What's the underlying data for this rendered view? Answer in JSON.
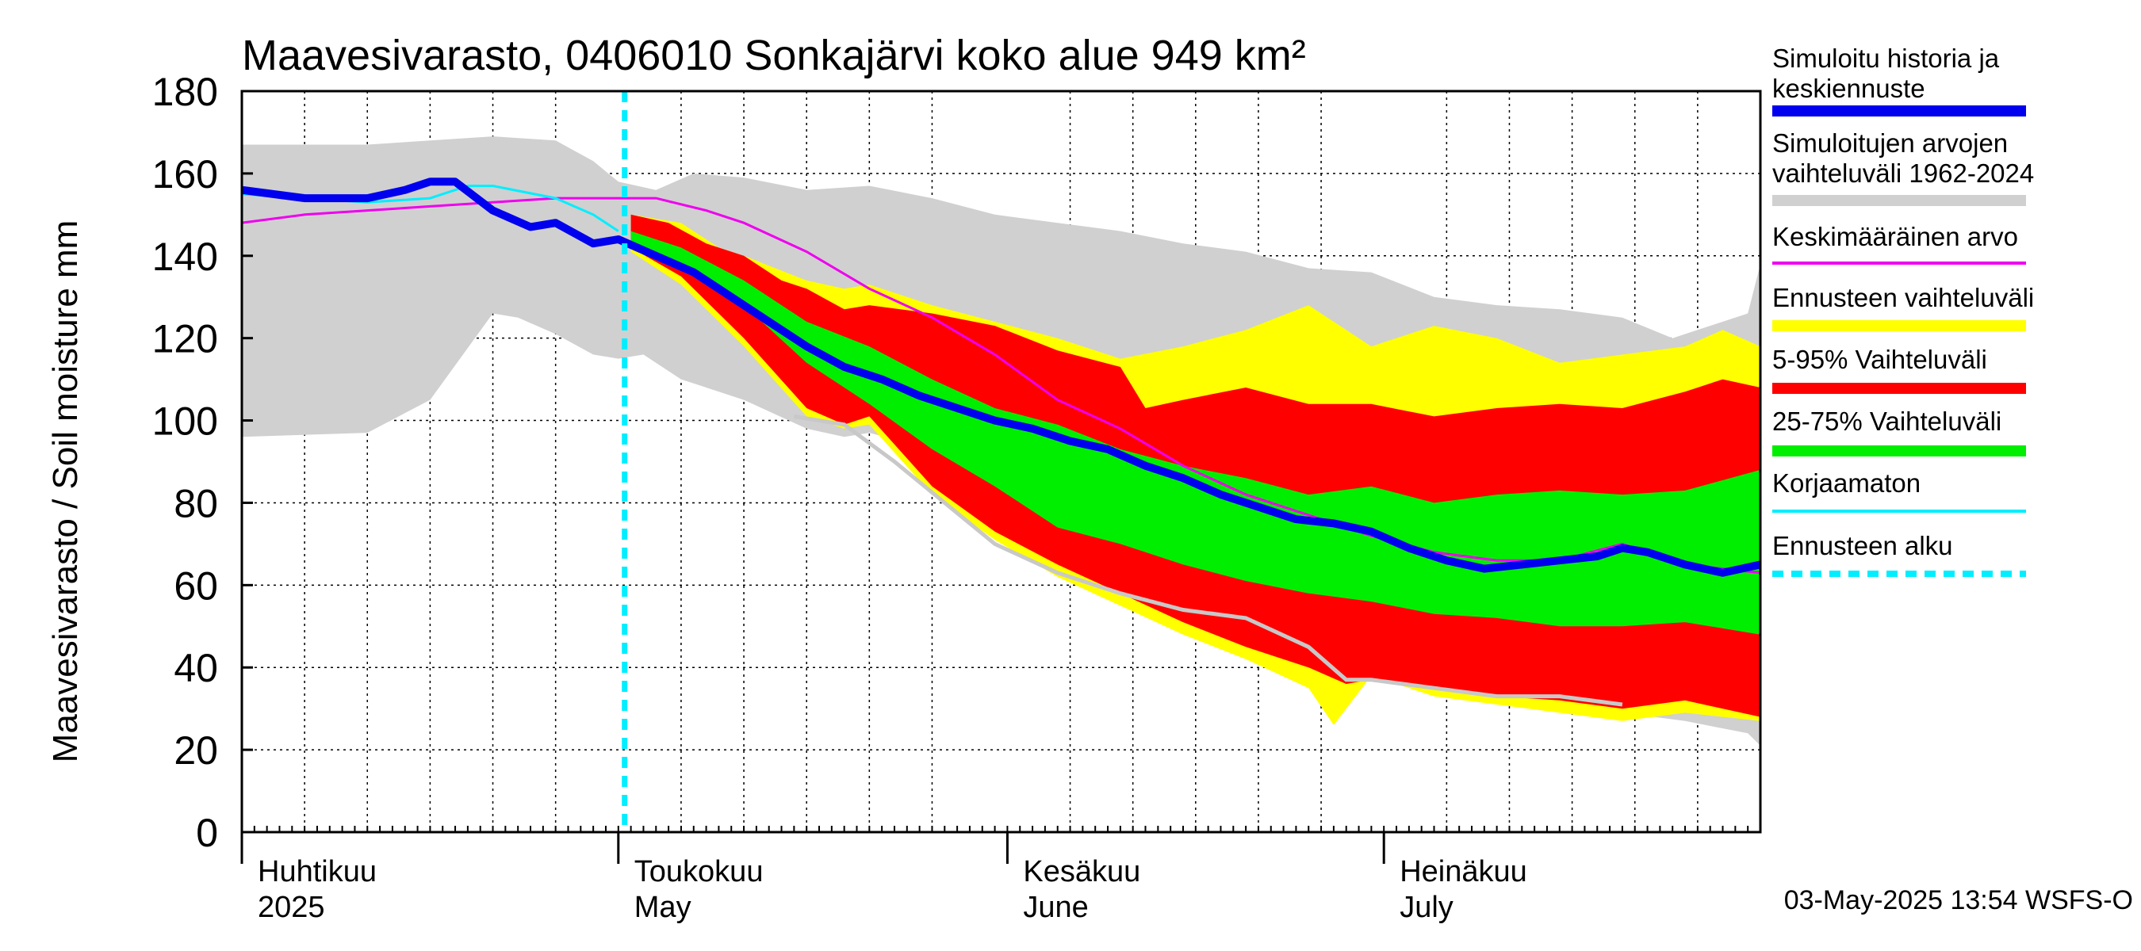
{
  "chart_data": {
    "type": "area",
    "title": "Maavesivarasto, 0406010 Sonkajärvi koko alue 949 km²",
    "ylabel": "Maavesivarasto / Soil moisture   mm",
    "ylim": [
      0,
      180
    ],
    "yticks": [
      "0",
      "20",
      "40",
      "60",
      "80",
      "100",
      "120",
      "140",
      "160",
      "180"
    ],
    "xlim_day": [
      0,
      121
    ],
    "months": [
      {
        "fi": "Huhtikuu",
        "en": "2025",
        "day": 0
      },
      {
        "fi": "Toukokuu",
        "en": "May",
        "day": 30
      },
      {
        "fi": "Kesäkuu",
        "en": "June",
        "day": 61
      },
      {
        "fi": "Heinäkuu",
        "en": "July",
        "day": 91
      }
    ],
    "forecast_start_day": 30.5,
    "footer": "03-May-2025 13:54 WSFS-O",
    "colors": {
      "history": "#0000ee",
      "range": "#d0d0d0",
      "mean": "#ee00ee",
      "ens_range": "#ffff00",
      "p5_95": "#ff0000",
      "p25_75": "#00ee00",
      "uncorrected": "#00eeff",
      "forecast_start": "#00eeff",
      "grid": "#000000"
    },
    "legend": [
      {
        "label": "Simuloitu historia ja keskiennuste",
        "key": "history",
        "style": "thick"
      },
      {
        "label": "Simuloitujen arvojen vaihteluväli 1962-2024",
        "key": "range",
        "style": "thick"
      },
      {
        "label": "Keskimääräinen arvo",
        "key": "mean",
        "style": "thin"
      },
      {
        "label": "Ennusteen vaihteluväli",
        "key": "ens_range",
        "style": "thick"
      },
      {
        "label": "5-95% Vaihteluväli",
        "key": "p5_95",
        "style": "thick"
      },
      {
        "label": "25-75% Vaihteluväli",
        "key": "p25_75",
        "style": "thick"
      },
      {
        "label": "Korjaamaton",
        "key": "uncorrected",
        "style": "thin"
      },
      {
        "label": "Ennusteen alku",
        "key": "forecast_start",
        "style": "dashed"
      }
    ],
    "series": {
      "range_upper": [
        [
          0,
          167
        ],
        [
          10,
          167
        ],
        [
          20,
          169
        ],
        [
          25,
          168
        ],
        [
          28,
          163
        ],
        [
          30,
          158
        ],
        [
          33,
          156
        ],
        [
          36,
          160
        ],
        [
          40,
          159
        ],
        [
          45,
          156
        ],
        [
          50,
          157
        ],
        [
          55,
          154
        ],
        [
          60,
          150
        ],
        [
          65,
          148
        ],
        [
          70,
          146
        ],
        [
          75,
          143
        ],
        [
          80,
          141
        ],
        [
          85,
          137
        ],
        [
          90,
          136
        ],
        [
          95,
          130
        ],
        [
          100,
          128
        ],
        [
          105,
          127
        ],
        [
          110,
          125
        ],
        [
          114,
          120
        ],
        [
          116,
          122
        ],
        [
          120,
          126
        ],
        [
          121,
          138
        ]
      ],
      "range_lower": [
        [
          0,
          96
        ],
        [
          10,
          97
        ],
        [
          15,
          105
        ],
        [
          20,
          126
        ],
        [
          22,
          125
        ],
        [
          25,
          121
        ],
        [
          28,
          116
        ],
        [
          30,
          115
        ],
        [
          32,
          116
        ],
        [
          35,
          110
        ],
        [
          40,
          105
        ],
        [
          45,
          98
        ],
        [
          48,
          96
        ],
        [
          50,
          97
        ],
        [
          55,
          93
        ],
        [
          60,
          87
        ],
        [
          65,
          80
        ],
        [
          70,
          73
        ],
        [
          75,
          67
        ],
        [
          80,
          60
        ],
        [
          85,
          54
        ],
        [
          90,
          51
        ],
        [
          95,
          44
        ],
        [
          100,
          38
        ],
        [
          105,
          34
        ],
        [
          110,
          29
        ],
        [
          115,
          27
        ],
        [
          120,
          24
        ],
        [
          121,
          21
        ]
      ],
      "ens_upper": [
        [
          31,
          150
        ],
        [
          35,
          148
        ],
        [
          38,
          142
        ],
        [
          40,
          140
        ],
        [
          45,
          134
        ],
        [
          48,
          132
        ],
        [
          50,
          133
        ],
        [
          55,
          128
        ],
        [
          60,
          124
        ],
        [
          65,
          120
        ],
        [
          70,
          115
        ],
        [
          75,
          118
        ],
        [
          80,
          122
        ],
        [
          85,
          128
        ],
        [
          90,
          118
        ],
        [
          95,
          123
        ],
        [
          100,
          120
        ],
        [
          105,
          114
        ],
        [
          110,
          116
        ],
        [
          115,
          118
        ],
        [
          118,
          122
        ],
        [
          121,
          118
        ]
      ],
      "ens_lower": [
        [
          31,
          141
        ],
        [
          35,
          133
        ],
        [
          40,
          118
        ],
        [
          45,
          101
        ],
        [
          48,
          98
        ],
        [
          50,
          99
        ],
        [
          55,
          82
        ],
        [
          60,
          71
        ],
        [
          65,
          62
        ],
        [
          70,
          55
        ],
        [
          75,
          48
        ],
        [
          80,
          42
        ],
        [
          85,
          35
        ],
        [
          87,
          26
        ],
        [
          90,
          38
        ],
        [
          95,
          33
        ],
        [
          100,
          31
        ],
        [
          105,
          29
        ],
        [
          110,
          27
        ],
        [
          115,
          29
        ],
        [
          121,
          27
        ]
      ],
      "p95": [
        [
          31,
          150
        ],
        [
          34,
          148
        ],
        [
          37,
          143
        ],
        [
          40,
          140
        ],
        [
          43,
          134
        ],
        [
          45,
          132
        ],
        [
          48,
          127
        ],
        [
          50,
          128
        ],
        [
          55,
          126
        ],
        [
          60,
          123
        ],
        [
          65,
          117
        ],
        [
          70,
          113
        ],
        [
          72,
          103
        ],
        [
          75,
          105
        ],
        [
          80,
          108
        ],
        [
          85,
          104
        ],
        [
          90,
          104
        ],
        [
          95,
          101
        ],
        [
          100,
          103
        ],
        [
          105,
          104
        ],
        [
          110,
          103
        ],
        [
          115,
          107
        ],
        [
          118,
          110
        ],
        [
          121,
          108
        ]
      ],
      "p5": [
        [
          31,
          142
        ],
        [
          35,
          135
        ],
        [
          40,
          120
        ],
        [
          45,
          103
        ],
        [
          48,
          99
        ],
        [
          50,
          101
        ],
        [
          55,
          84
        ],
        [
          60,
          73
        ],
        [
          65,
          65
        ],
        [
          70,
          58
        ],
        [
          75,
          51
        ],
        [
          80,
          45
        ],
        [
          85,
          40
        ],
        [
          88,
          36
        ],
        [
          90,
          37
        ],
        [
          95,
          35
        ],
        [
          100,
          33
        ],
        [
          105,
          32
        ],
        [
          110,
          30
        ],
        [
          115,
          32
        ],
        [
          121,
          28
        ]
      ],
      "p75": [
        [
          31,
          146
        ],
        [
          35,
          142
        ],
        [
          40,
          134
        ],
        [
          45,
          124
        ],
        [
          50,
          118
        ],
        [
          55,
          110
        ],
        [
          60,
          103
        ],
        [
          65,
          99
        ],
        [
          70,
          93
        ],
        [
          75,
          89
        ],
        [
          80,
          86
        ],
        [
          85,
          82
        ],
        [
          90,
          84
        ],
        [
          95,
          80
        ],
        [
          100,
          82
        ],
        [
          105,
          83
        ],
        [
          110,
          82
        ],
        [
          115,
          83
        ],
        [
          121,
          88
        ]
      ],
      "p25": [
        [
          31,
          143
        ],
        [
          35,
          138
        ],
        [
          40,
          128
        ],
        [
          45,
          114
        ],
        [
          50,
          104
        ],
        [
          55,
          93
        ],
        [
          60,
          84
        ],
        [
          65,
          74
        ],
        [
          70,
          70
        ],
        [
          75,
          65
        ],
        [
          80,
          61
        ],
        [
          85,
          58
        ],
        [
          90,
          56
        ],
        [
          95,
          53
        ],
        [
          100,
          52
        ],
        [
          105,
          50
        ],
        [
          110,
          50
        ],
        [
          115,
          51
        ],
        [
          121,
          48
        ]
      ],
      "mean": [
        [
          0,
          148
        ],
        [
          5,
          150
        ],
        [
          10,
          151
        ],
        [
          15,
          152
        ],
        [
          20,
          153
        ],
        [
          25,
          154
        ],
        [
          30,
          154
        ],
        [
          33,
          154
        ],
        [
          37,
          151
        ],
        [
          40,
          148
        ],
        [
          45,
          141
        ],
        [
          50,
          132
        ],
        [
          55,
          125
        ],
        [
          60,
          116
        ],
        [
          65,
          105
        ],
        [
          70,
          98
        ],
        [
          75,
          89
        ],
        [
          80,
          82
        ],
        [
          85,
          77
        ],
        [
          90,
          72
        ],
        [
          95,
          68
        ],
        [
          100,
          66
        ],
        [
          105,
          66
        ],
        [
          110,
          70
        ],
        [
          115,
          65
        ],
        [
          121,
          63
        ]
      ],
      "uncorrected": [
        [
          0,
          155
        ],
        [
          5,
          154
        ],
        [
          10,
          153
        ],
        [
          15,
          154
        ],
        [
          18,
          157
        ],
        [
          20,
          157
        ],
        [
          25,
          154
        ],
        [
          28,
          150
        ],
        [
          30,
          146
        ]
      ],
      "history": [
        [
          0,
          156
        ],
        [
          5,
          154
        ],
        [
          10,
          154
        ],
        [
          13,
          156
        ],
        [
          15,
          158
        ],
        [
          17,
          158
        ],
        [
          20,
          151
        ],
        [
          23,
          147
        ],
        [
          25,
          148
        ],
        [
          28,
          143
        ],
        [
          30,
          144
        ],
        [
          33,
          140
        ],
        [
          36,
          136
        ],
        [
          39,
          130
        ],
        [
          42,
          124
        ],
        [
          45,
          118
        ],
        [
          48,
          113
        ],
        [
          51,
          110
        ],
        [
          54,
          106
        ],
        [
          57,
          103
        ],
        [
          60,
          100
        ],
        [
          63,
          98
        ],
        [
          66,
          95
        ],
        [
          69,
          93
        ],
        [
          72,
          89
        ],
        [
          75,
          86
        ],
        [
          78,
          82
        ],
        [
          81,
          79
        ],
        [
          84,
          76
        ],
        [
          87,
          75
        ],
        [
          90,
          73
        ],
        [
          93,
          69
        ],
        [
          96,
          66
        ],
        [
          99,
          64
        ],
        [
          102,
          65
        ],
        [
          105,
          66
        ],
        [
          108,
          67
        ],
        [
          110,
          69
        ],
        [
          112,
          68
        ],
        [
          115,
          65
        ],
        [
          118,
          63
        ],
        [
          121,
          65
        ]
      ],
      "historical_low": [
        [
          44,
          101
        ],
        [
          48,
          99
        ],
        [
          52,
          90
        ],
        [
          56,
          80
        ],
        [
          60,
          70
        ],
        [
          65,
          63
        ],
        [
          70,
          58
        ],
        [
          75,
          54
        ],
        [
          80,
          52
        ],
        [
          85,
          45
        ],
        [
          88,
          37
        ],
        [
          90,
          37
        ],
        [
          95,
          35
        ],
        [
          100,
          33
        ],
        [
          105,
          33
        ],
        [
          110,
          31
        ]
      ]
    }
  }
}
